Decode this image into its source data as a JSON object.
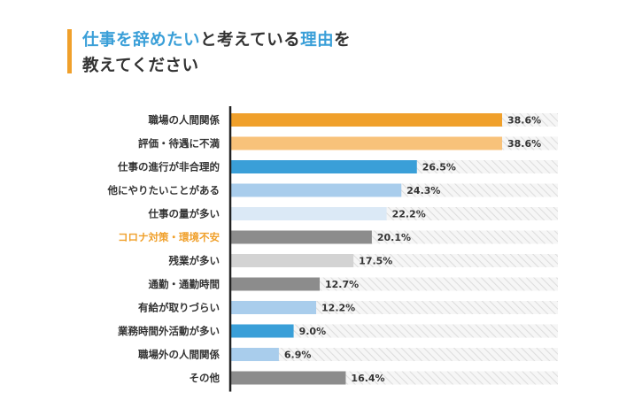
{
  "header": {
    "title_parts": [
      "仕事を辞めたい",
      "と考えている",
      "理由",
      "を"
    ],
    "title_line2": "教えてください",
    "accent_color": "#f0a02b",
    "highlight_color": "#3a9fd8"
  },
  "chart_data": {
    "type": "bar",
    "orientation": "horizontal",
    "xlim": [
      0,
      100
    ],
    "categories": [
      "職場の人間関係",
      "評価・待遇に不満",
      "仕事の進行が非合理的",
      "他にやりたいことがある",
      "仕事の量が多い",
      "コロナ対策・環境不安",
      "残業が多い",
      "通勤・通勤時間",
      "有給が取りづらい",
      "業務時間外活動が多い",
      "職場外の人間関係",
      "その他"
    ],
    "values": [
      38.6,
      38.6,
      26.5,
      24.3,
      22.2,
      20.1,
      17.5,
      12.7,
      12.2,
      9.0,
      6.9,
      16.4
    ],
    "value_labels": [
      "38.6%",
      "38.6%",
      "26.5%",
      "24.3%",
      "22.2%",
      "20.1%",
      "17.5%",
      "12.7%",
      "12.2%",
      "9.0%",
      "6.9%",
      "16.4%"
    ],
    "bar_colors": [
      "#f0a02b",
      "#f8c27a",
      "#3a9fd8",
      "#a9cdec",
      "#dbe9f6",
      "#8c8c8c",
      "#d3d3d3",
      "#8c8c8c",
      "#a9cdec",
      "#3a9fd8",
      "#a9cdec",
      "#8c8c8c"
    ],
    "highlighted_category": "コロナ対策・環境不安",
    "highlight_label_color": "#f0a02b"
  }
}
